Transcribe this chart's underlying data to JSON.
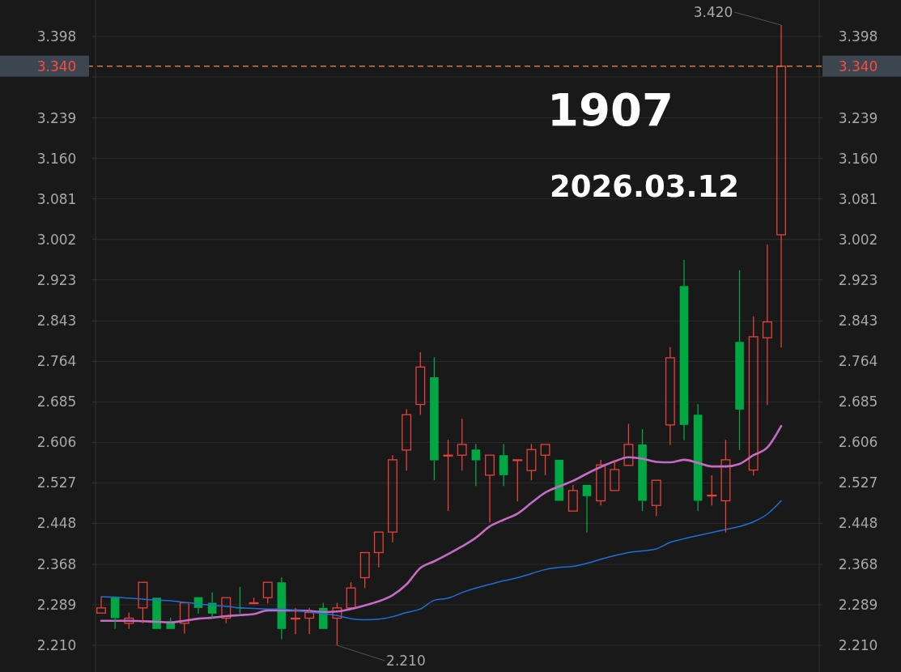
{
  "chart_data": {
    "type": "candlestick",
    "title": "1907",
    "subtitle": "2026.03.12",
    "categories": [
      null,
      null,
      null,
      null,
      null,
      null,
      null,
      null,
      null,
      null,
      null,
      null,
      null,
      null,
      null,
      null,
      null,
      null,
      null,
      null,
      null,
      null,
      null,
      null,
      null,
      null,
      null,
      null,
      null,
      null,
      null,
      null,
      null,
      null,
      null,
      null,
      null,
      null,
      null,
      null,
      null,
      null,
      null,
      null,
      null,
      null,
      null,
      null,
      null,
      null
    ],
    "ohlc": [
      [
        2.273,
        2.304,
        2.273,
        2.283
      ],
      [
        2.303,
        2.303,
        2.242,
        2.263
      ],
      [
        2.253,
        2.274,
        2.242,
        2.263
      ],
      [
        2.283,
        2.333,
        2.253,
        2.333
      ],
      [
        2.303,
        2.303,
        2.242,
        2.242
      ],
      [
        2.255,
        2.264,
        2.242,
        2.242
      ],
      [
        2.253,
        2.293,
        2.233,
        2.293
      ],
      [
        2.304,
        2.304,
        2.272,
        2.283
      ],
      [
        2.293,
        2.313,
        2.263,
        2.272
      ],
      [
        2.263,
        2.303,
        2.253,
        2.303
      ],
      [
        2.284,
        2.324,
        2.272,
        2.283
      ],
      [
        2.292,
        2.303,
        2.292,
        2.293
      ],
      [
        2.303,
        2.333,
        2.292,
        2.333
      ],
      [
        2.333,
        2.343,
        2.222,
        2.242
      ],
      [
        2.263,
        2.283,
        2.232,
        2.263
      ],
      [
        2.263,
        2.283,
        2.232,
        2.274
      ],
      [
        2.283,
        2.293,
        2.242,
        2.242
      ],
      [
        2.263,
        2.293,
        2.21,
        2.283
      ],
      [
        2.283,
        2.333,
        2.283,
        2.322
      ],
      [
        2.342,
        2.391,
        2.322,
        2.391
      ],
      [
        2.391,
        2.431,
        2.362,
        2.431
      ],
      [
        2.431,
        2.581,
        2.411,
        2.572
      ],
      [
        2.591,
        2.671,
        2.551,
        2.66
      ],
      [
        2.68,
        2.782,
        2.66,
        2.753
      ],
      [
        2.733,
        2.772,
        2.532,
        2.571
      ],
      [
        2.581,
        2.611,
        2.472,
        2.581
      ],
      [
        2.581,
        2.652,
        2.551,
        2.602
      ],
      [
        2.592,
        2.603,
        2.521,
        2.571
      ],
      [
        2.542,
        2.581,
        2.45,
        2.581
      ],
      [
        2.581,
        2.603,
        2.521,
        2.542
      ],
      [
        2.571,
        2.572,
        2.491,
        2.572
      ],
      [
        2.551,
        2.603,
        2.532,
        2.592
      ],
      [
        2.581,
        2.602,
        2.542,
        2.602
      ],
      [
        2.572,
        2.572,
        2.492,
        2.492
      ],
      [
        2.472,
        2.523,
        2.472,
        2.512
      ],
      [
        2.523,
        2.523,
        2.43,
        2.501
      ],
      [
        2.492,
        2.572,
        2.483,
        2.562
      ],
      [
        2.512,
        2.572,
        2.512,
        2.553
      ],
      [
        2.561,
        2.642,
        2.561,
        2.602
      ],
      [
        2.602,
        2.632,
        2.472,
        2.492
      ],
      [
        2.483,
        2.532,
        2.462,
        2.532
      ],
      [
        2.64,
        2.792,
        2.601,
        2.771
      ],
      [
        2.911,
        2.962,
        2.61,
        2.64
      ],
      [
        2.66,
        2.681,
        2.472,
        2.492
      ],
      [
        2.502,
        2.542,
        2.483,
        2.503
      ],
      [
        2.492,
        2.611,
        2.43,
        2.572
      ],
      [
        2.802,
        2.942,
        2.591,
        2.67
      ],
      [
        2.552,
        2.852,
        2.541,
        2.812
      ],
      [
        2.81,
        2.992,
        2.679,
        2.841
      ],
      [
        3.011,
        3.42,
        2.791,
        3.34
      ]
    ],
    "colors": [
      "#e8413c",
      "#00a844",
      "#e8413c",
      "#e8413c",
      "#00a844",
      "#00a844",
      "#e8413c",
      "#00a844",
      "#00a844",
      "#e8413c",
      "#00a844",
      "#e8413c",
      "#e8413c",
      "#00a844",
      "#e8413c",
      "#e8413c",
      "#00a844",
      "#e8413c",
      "#e8413c",
      "#e8413c",
      "#e8413c",
      "#e8413c",
      "#e8413c",
      "#e8413c",
      "#00a844",
      "#e8413c",
      "#e8413c",
      "#00a844",
      "#e8413c",
      "#00a844",
      "#e8413c",
      "#e8413c",
      "#e8413c",
      "#00a844",
      "#e8413c",
      "#00a844",
      "#e8413c",
      "#e8413c",
      "#e8413c",
      "#00a844",
      "#e8413c",
      "#e8413c",
      "#00a844",
      "#00a844",
      "#e8413c",
      "#e8413c",
      "#00a844",
      "#e8413c",
      "#e8413c",
      "#e8413c"
    ],
    "series": [
      {
        "type": "line",
        "color": "#c46cc4",
        "values": [
          2.258,
          2.258,
          2.258,
          2.257,
          2.256,
          2.255,
          2.258,
          2.262,
          2.264,
          2.267,
          2.269,
          2.271,
          2.278,
          2.278,
          2.278,
          2.277,
          2.275,
          2.276,
          2.281,
          2.288,
          2.296,
          2.308,
          2.329,
          2.361,
          2.374,
          2.388,
          2.403,
          2.42,
          2.442,
          2.455,
          2.467,
          2.488,
          2.508,
          2.52,
          2.531,
          2.545,
          2.558,
          2.569,
          2.577,
          2.574,
          2.568,
          2.567,
          2.572,
          2.566,
          2.559,
          2.559,
          2.564,
          2.581,
          2.596,
          2.638
        ]
      },
      {
        "type": "line",
        "color": "#1f6fd6",
        "values": [
          2.305,
          2.304,
          2.302,
          2.3,
          2.298,
          2.297,
          2.294,
          2.291,
          2.288,
          2.286,
          2.283,
          2.282,
          2.281,
          2.281,
          2.278,
          2.275,
          2.272,
          2.268,
          2.262,
          2.26,
          2.261,
          2.266,
          2.274,
          2.281,
          2.298,
          2.302,
          2.313,
          2.322,
          2.329,
          2.336,
          2.342,
          2.35,
          2.358,
          2.362,
          2.364,
          2.37,
          2.378,
          2.385,
          2.391,
          2.394,
          2.398,
          2.411,
          2.418,
          2.424,
          2.43,
          2.436,
          2.442,
          2.451,
          2.466,
          2.492
        ]
      }
    ],
    "ylim": [
      2.158,
      3.469
    ],
    "yticks": [
      {
        "value": 2.21,
        "label": "2.210"
      },
      2.289,
      2.368,
      2.448,
      2.527,
      2.606,
      2.685,
      2.764,
      2.843,
      2.923,
      3.002,
      3.081,
      {
        "value": 3.16,
        "label": "3.160"
      },
      3.239,
      {
        "value": 3.319,
        "label": null
      },
      3.398
    ],
    "y2lim": [
      2.158,
      3.469
    ],
    "y2ticks": [
      {
        "value": 2.21,
        "label": "2.210"
      },
      2.289,
      2.368,
      2.448,
      2.527,
      2.606,
      2.685,
      2.764,
      2.843,
      2.923,
      3.002,
      3.081,
      {
        "value": 3.16,
        "label": "3.160"
      },
      3.239,
      {
        "value": 3.319,
        "label": null
      },
      3.398
    ],
    "grid": "y",
    "ref_lines": [
      {
        "axis": "y",
        "value": 3.34,
        "label": "3.340",
        "color": "#e07a2a",
        "line_style": "dashed"
      }
    ],
    "annotations": [
      "3.420",
      "2.210"
    ]
  }
}
